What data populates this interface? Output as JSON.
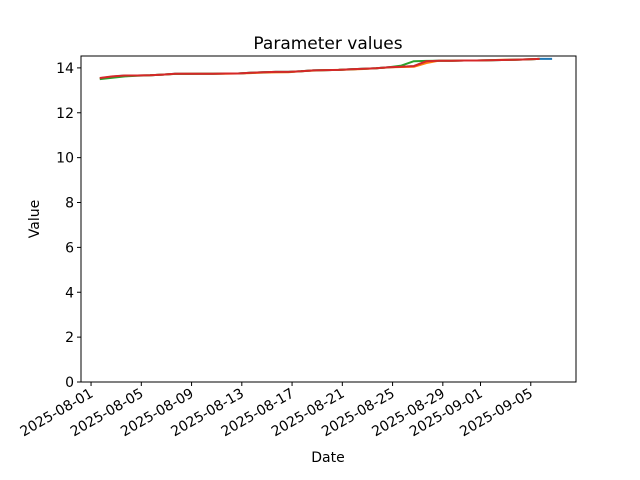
{
  "chart_data": {
    "type": "line",
    "title": "Parameter values",
    "xlabel": "Date",
    "ylabel": "Value",
    "legend": "none",
    "grid": false,
    "background_color": "#ffffff",
    "axes_frame_color": "#000000",
    "ylim": [
      0,
      14.53
    ],
    "xlim_days_from_2025_08_01": [
      -0.8,
      38.6
    ],
    "y_ticks": [
      0,
      2,
      4,
      6,
      8,
      10,
      12,
      14
    ],
    "x_ticks": [
      {
        "label": "2025-08-01",
        "day": 0
      },
      {
        "label": "2025-08-05",
        "day": 4
      },
      {
        "label": "2025-08-09",
        "day": 8
      },
      {
        "label": "2025-08-13",
        "day": 12
      },
      {
        "label": "2025-08-17",
        "day": 16
      },
      {
        "label": "2025-08-21",
        "day": 20
      },
      {
        "label": "2025-08-25",
        "day": 24
      },
      {
        "label": "2025-08-29",
        "day": 28
      },
      {
        "label": "2025-09-01",
        "day": 31
      },
      {
        "label": "2025-09-05",
        "day": 35
      }
    ],
    "x_days": [
      0.7,
      1.7,
      2.7,
      3.7,
      4.7,
      5.7,
      6.7,
      7.7,
      8.7,
      9.7,
      10.7,
      11.7,
      12.7,
      13.7,
      14.7,
      15.7,
      16.7,
      17.7,
      18.7,
      19.7,
      20.7,
      21.7,
      22.7,
      23.7,
      24.7,
      25.7,
      26.7,
      27.7,
      28.7,
      29.7,
      30.7,
      31.7,
      32.7,
      33.7,
      34.7,
      35.7,
      36.7
    ],
    "series": [
      {
        "name": "series-blue",
        "color": "#1f77b4",
        "values": [
          13.54,
          13.61,
          13.66,
          13.66,
          13.67,
          13.7,
          13.74,
          13.74,
          13.74,
          13.74,
          13.75,
          13.75,
          13.78,
          13.81,
          13.82,
          13.82,
          13.85,
          13.89,
          13.9,
          13.91,
          13.94,
          13.96,
          13.98,
          14.03,
          14.05,
          14.08,
          14.3,
          14.32,
          14.32,
          14.33,
          14.33,
          14.34,
          14.35,
          14.36,
          14.38,
          14.4,
          14.4
        ]
      },
      {
        "name": "series-orange",
        "color": "#ff7f0e",
        "values": [
          13.53,
          13.6,
          13.65,
          13.66,
          13.67,
          13.7,
          13.73,
          13.74,
          13.74,
          13.74,
          13.74,
          13.75,
          13.77,
          13.79,
          13.8,
          13.81,
          13.85,
          13.88,
          13.9,
          13.91,
          13.93,
          13.95,
          13.98,
          14.02,
          14.04,
          14.05,
          14.22,
          14.32,
          14.32,
          14.33,
          14.33,
          14.34,
          14.36,
          14.36,
          14.38,
          14.4,
          null
        ]
      },
      {
        "name": "series-green",
        "color": "#2ca02c",
        "values": [
          13.5,
          13.56,
          13.62,
          13.65,
          13.67,
          13.7,
          13.73,
          13.73,
          13.74,
          13.74,
          13.75,
          13.75,
          13.78,
          13.81,
          13.82,
          13.82,
          13.85,
          13.89,
          13.9,
          13.91,
          13.94,
          13.96,
          13.98,
          14.03,
          14.1,
          14.3,
          14.31,
          14.32,
          14.32,
          14.33,
          14.33,
          14.34,
          14.35,
          14.36,
          14.38,
          14.4,
          null
        ]
      },
      {
        "name": "series-red",
        "color": "#d62728",
        "values": [
          13.55,
          13.62,
          13.66,
          13.66,
          13.67,
          13.7,
          13.74,
          13.74,
          13.74,
          13.74,
          13.75,
          13.75,
          13.78,
          13.81,
          13.82,
          13.82,
          13.85,
          13.89,
          13.9,
          13.91,
          13.94,
          13.96,
          13.98,
          14.03,
          14.05,
          14.08,
          14.3,
          14.32,
          14.32,
          14.33,
          14.33,
          14.34,
          14.35,
          14.36,
          14.38,
          14.4,
          null
        ]
      }
    ]
  }
}
